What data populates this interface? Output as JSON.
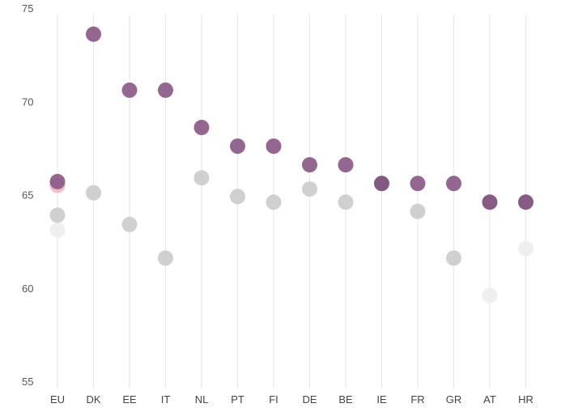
{
  "chart_data": {
    "type": "scatter",
    "title": "",
    "xlabel": "",
    "ylabel": "",
    "ylim": [
      55,
      75
    ],
    "yticks": [
      55,
      60,
      65,
      70,
      75
    ],
    "categories": [
      "EU",
      "DK",
      "EE",
      "IT",
      "NL",
      "PT",
      "FI",
      "DE",
      "BE",
      "IE",
      "FR",
      "GR",
      "AT",
      "HR"
    ],
    "grid": "vertical",
    "legend": "none",
    "points": [
      {
        "category": "EU",
        "value": 63.1,
        "color": "#eeeeee"
      },
      {
        "category": "EU",
        "value": 63.9,
        "color": "#cccccc"
      },
      {
        "category": "EU",
        "value": 65.5,
        "color": "#f0b8c0"
      },
      {
        "category": "EU",
        "value": 65.7,
        "color": "#8b5a87"
      },
      {
        "category": "DK",
        "value": 65.1,
        "color": "#cccccc"
      },
      {
        "category": "DK",
        "value": 73.6,
        "color": "#8b5a87"
      },
      {
        "category": "EE",
        "value": 63.4,
        "color": "#cccccc"
      },
      {
        "category": "EE",
        "value": 70.6,
        "color": "#8b5a87"
      },
      {
        "category": "IT",
        "value": 61.6,
        "color": "#cccccc"
      },
      {
        "category": "IT",
        "value": 70.6,
        "color": "#8b5a87"
      },
      {
        "category": "NL",
        "value": 65.9,
        "color": "#cccccc"
      },
      {
        "category": "NL",
        "value": 68.6,
        "color": "#8b5a87"
      },
      {
        "category": "PT",
        "value": 64.9,
        "color": "#cccccc"
      },
      {
        "category": "PT",
        "value": 67.6,
        "color": "#8b5a87"
      },
      {
        "category": "FI",
        "value": 64.6,
        "color": "#cccccc"
      },
      {
        "category": "FI",
        "value": 67.6,
        "color": "#8b5a87"
      },
      {
        "category": "DE",
        "value": 65.3,
        "color": "#cccccc"
      },
      {
        "category": "DE",
        "value": 66.6,
        "color": "#8b5a87"
      },
      {
        "category": "BE",
        "value": 64.6,
        "color": "#cccccc"
      },
      {
        "category": "BE",
        "value": 66.6,
        "color": "#8b5a87"
      },
      {
        "category": "IE",
        "value": 65.6,
        "color": "#cccccc"
      },
      {
        "category": "IE",
        "value": 65.6,
        "color": "#7d4e7a"
      },
      {
        "category": "FR",
        "value": 64.1,
        "color": "#cccccc"
      },
      {
        "category": "FR",
        "value": 65.6,
        "color": "#8b5a87"
      },
      {
        "category": "GR",
        "value": 61.6,
        "color": "#cccccc"
      },
      {
        "category": "GR",
        "value": 65.6,
        "color": "#8b5a87"
      },
      {
        "category": "AT",
        "value": 59.6,
        "color": "#eeeeee"
      },
      {
        "category": "AT",
        "value": 64.6,
        "color": "#7d4e7a"
      },
      {
        "category": "HR",
        "value": 62.1,
        "color": "#eeeeee"
      },
      {
        "category": "HR",
        "value": 64.6,
        "color": "#7d4e7a"
      }
    ]
  }
}
